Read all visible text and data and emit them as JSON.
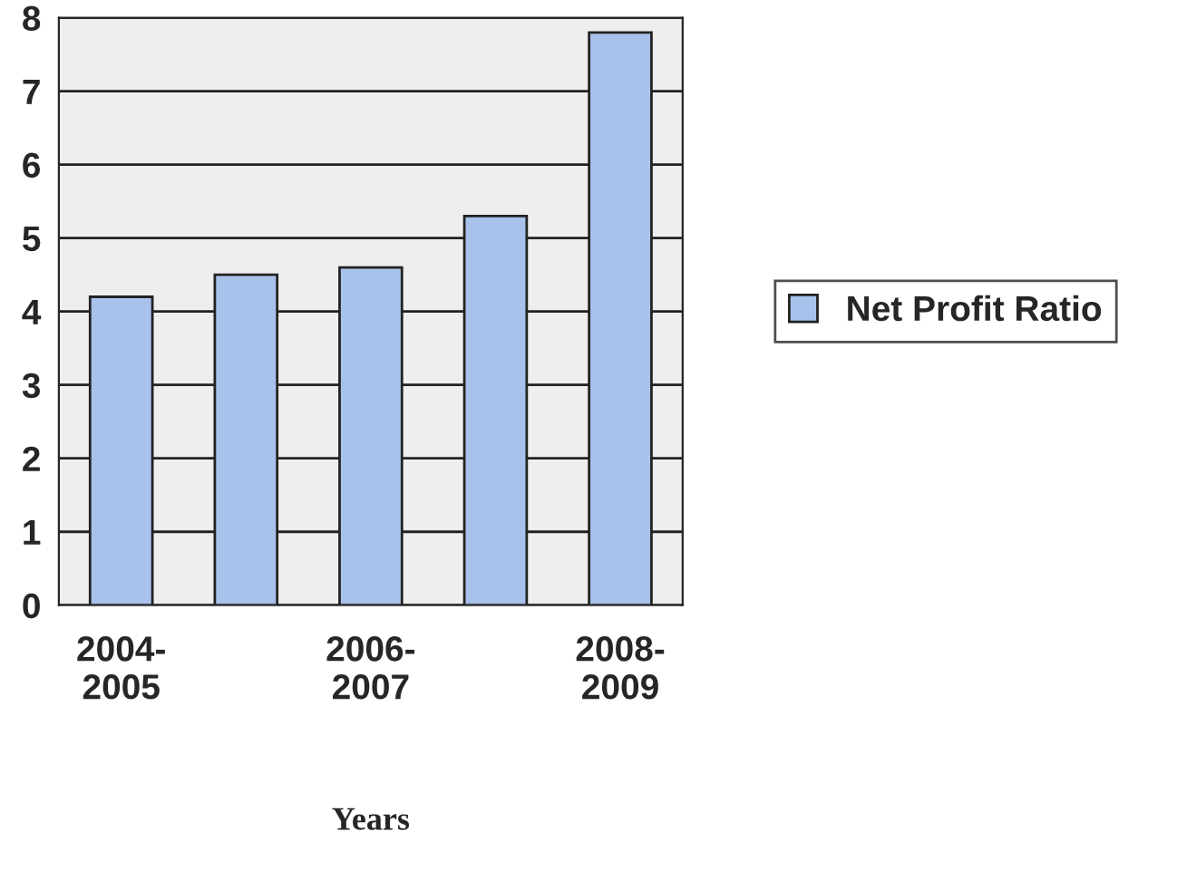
{
  "chart_data": {
    "type": "bar",
    "xlabel": "Years",
    "categories": [
      "2004-\n2005",
      null,
      "2006-\n2007",
      null,
      "2008-\n2009"
    ],
    "series": [
      {
        "name": "Net Profit Ratio",
        "color": "#a8c2ec",
        "values": [
          4.2,
          4.5,
          4.6,
          5.3,
          7.8
        ]
      }
    ],
    "ylim": [
      0,
      8
    ],
    "yticks": [
      0,
      1,
      2,
      3,
      4,
      5,
      6,
      7,
      8
    ],
    "grid": "y",
    "legend": "right"
  }
}
